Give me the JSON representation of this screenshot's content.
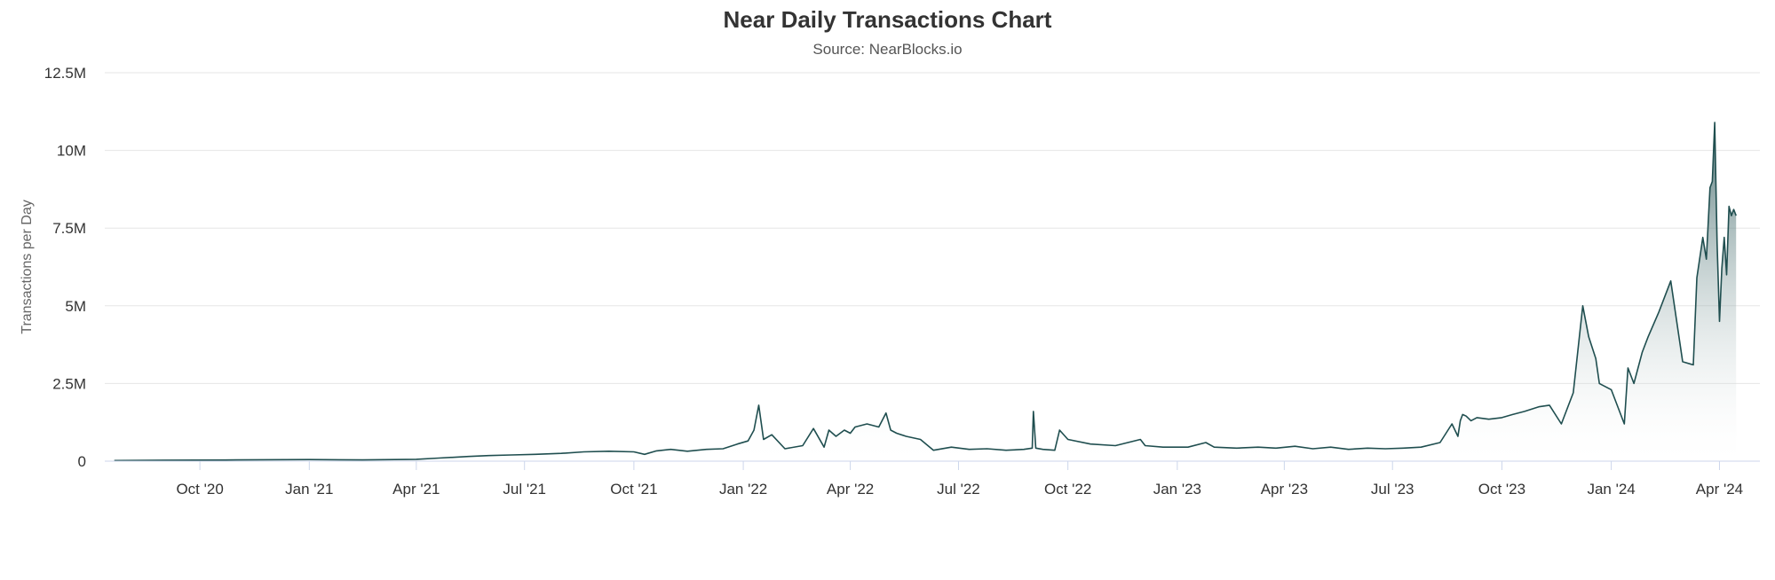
{
  "chart_data": {
    "type": "area",
    "title": "Near Daily Transactions Chart",
    "subtitle": "Source: NearBlocks.io",
    "ylabel": "Transactions per Day",
    "xlabel": "",
    "ylim": [
      0,
      12500000
    ],
    "xlim": [
      "2020-07-13",
      "2024-05-05"
    ],
    "grid": true,
    "line_color": "#1f4e4f",
    "fill_color_top": "#1f4e4f",
    "fill_color_bottom": "#ffffff",
    "y_ticks": [
      {
        "value": 0,
        "label": "0"
      },
      {
        "value": 2500000,
        "label": "2.5M"
      },
      {
        "value": 5000000,
        "label": "5M"
      },
      {
        "value": 7500000,
        "label": "7.5M"
      },
      {
        "value": 10000000,
        "label": "10M"
      },
      {
        "value": 12500000,
        "label": "12.5M"
      }
    ],
    "x_ticks": [
      {
        "date": "2020-10-01",
        "label": "Oct '20"
      },
      {
        "date": "2021-01-01",
        "label": "Jan '21"
      },
      {
        "date": "2021-04-01",
        "label": "Apr '21"
      },
      {
        "date": "2021-07-01",
        "label": "Jul '21"
      },
      {
        "date": "2021-10-01",
        "label": "Oct '21"
      },
      {
        "date": "2022-01-01",
        "label": "Jan '22"
      },
      {
        "date": "2022-04-01",
        "label": "Apr '22"
      },
      {
        "date": "2022-07-01",
        "label": "Jul '22"
      },
      {
        "date": "2022-10-01",
        "label": "Oct '22"
      },
      {
        "date": "2023-01-01",
        "label": "Jan '23"
      },
      {
        "date": "2023-04-01",
        "label": "Apr '23"
      },
      {
        "date": "2023-07-01",
        "label": "Jul '23"
      },
      {
        "date": "2023-10-01",
        "label": "Oct '23"
      },
      {
        "date": "2024-01-01",
        "label": "Jan '24"
      },
      {
        "date": "2024-04-01",
        "label": "Apr '24"
      }
    ],
    "series": [
      {
        "x": [
          "2020-07-21",
          "2020-09-01",
          "2020-11-01",
          "2021-01-01",
          "2021-02-15",
          "2021-04-01",
          "2021-04-20",
          "2021-05-15",
          "2021-06-01",
          "2021-06-20",
          "2021-07-10",
          "2021-08-01",
          "2021-08-20",
          "2021-09-10",
          "2021-10-01",
          "2021-10-10",
          "2021-10-20",
          "2021-11-01",
          "2021-11-15",
          "2021-12-01",
          "2021-12-15",
          "2021-12-27",
          "2022-01-05",
          "2022-01-10",
          "2022-01-14",
          "2022-01-18",
          "2022-01-25",
          "2022-02-05",
          "2022-02-20",
          "2022-03-01",
          "2022-03-10",
          "2022-03-14",
          "2022-03-20",
          "2022-03-27",
          "2022-04-01",
          "2022-04-05",
          "2022-04-15",
          "2022-04-25",
          "2022-05-01",
          "2022-05-05",
          "2022-05-10",
          "2022-05-18",
          "2022-05-30",
          "2022-06-10",
          "2022-06-25",
          "2022-07-10",
          "2022-07-25",
          "2022-08-10",
          "2022-08-25",
          "2022-09-01",
          "2022-09-02",
          "2022-09-04",
          "2022-09-10",
          "2022-09-20",
          "2022-09-24",
          "2022-10-01",
          "2022-10-20",
          "2022-11-10",
          "2022-12-01",
          "2022-12-05",
          "2022-12-20",
          "2023-01-10",
          "2023-01-25",
          "2023-02-01",
          "2023-02-20",
          "2023-03-10",
          "2023-03-25",
          "2023-04-10",
          "2023-04-25",
          "2023-05-10",
          "2023-05-25",
          "2023-06-10",
          "2023-06-25",
          "2023-07-10",
          "2023-07-25",
          "2023-08-10",
          "2023-08-20",
          "2023-08-25",
          "2023-08-27",
          "2023-08-29",
          "2023-09-01",
          "2023-09-05",
          "2023-09-10",
          "2023-09-20",
          "2023-10-01",
          "2023-10-10",
          "2023-10-20",
          "2023-11-01",
          "2023-11-10",
          "2023-11-20",
          "2023-11-30",
          "2023-12-08",
          "2023-12-13",
          "2023-12-19",
          "2023-12-22",
          "2024-01-01",
          "2024-01-12",
          "2024-01-15",
          "2024-01-20",
          "2024-01-27",
          "2024-02-01",
          "2024-02-10",
          "2024-02-20",
          "2024-03-01",
          "2024-03-10",
          "2024-03-13",
          "2024-03-18",
          "2024-03-21",
          "2024-03-24",
          "2024-03-26",
          "2024-03-28",
          "2024-03-30",
          "2024-04-01",
          "2024-04-03",
          "2024-04-05",
          "2024-04-07",
          "2024-04-09",
          "2024-04-11",
          "2024-04-13",
          "2024-04-15"
        ],
        "values": [
          20000,
          30000,
          40000,
          50000,
          40000,
          60000,
          100000,
          150000,
          180000,
          200000,
          220000,
          250000,
          300000,
          320000,
          300000,
          220000,
          330000,
          380000,
          320000,
          380000,
          400000,
          550000,
          650000,
          1000000,
          1800000,
          700000,
          850000,
          400000,
          500000,
          1050000,
          450000,
          1000000,
          800000,
          1000000,
          900000,
          1100000,
          1200000,
          1100000,
          1550000,
          1000000,
          900000,
          800000,
          700000,
          350000,
          450000,
          380000,
          400000,
          350000,
          380000,
          420000,
          1600000,
          420000,
          380000,
          350000,
          1000000,
          700000,
          550000,
          500000,
          700000,
          500000,
          450000,
          450000,
          600000,
          450000,
          420000,
          450000,
          420000,
          480000,
          400000,
          450000,
          380000,
          420000,
          400000,
          420000,
          450000,
          600000,
          1200000,
          800000,
          1300000,
          1500000,
          1450000,
          1300000,
          1400000,
          1350000,
          1400000,
          1500000,
          1600000,
          1750000,
          1800000,
          1200000,
          2200000,
          5000000,
          4000000,
          3300000,
          2500000,
          2300000,
          1200000,
          3000000,
          2500000,
          3500000,
          4000000,
          4800000,
          5800000,
          3200000,
          3100000,
          5900000,
          7200000,
          6500000,
          8800000,
          9000000,
          10900000,
          7000000,
          4500000,
          6200000,
          7200000,
          6000000,
          8200000,
          7900000,
          8100000,
          7900000
        ]
      }
    ]
  }
}
